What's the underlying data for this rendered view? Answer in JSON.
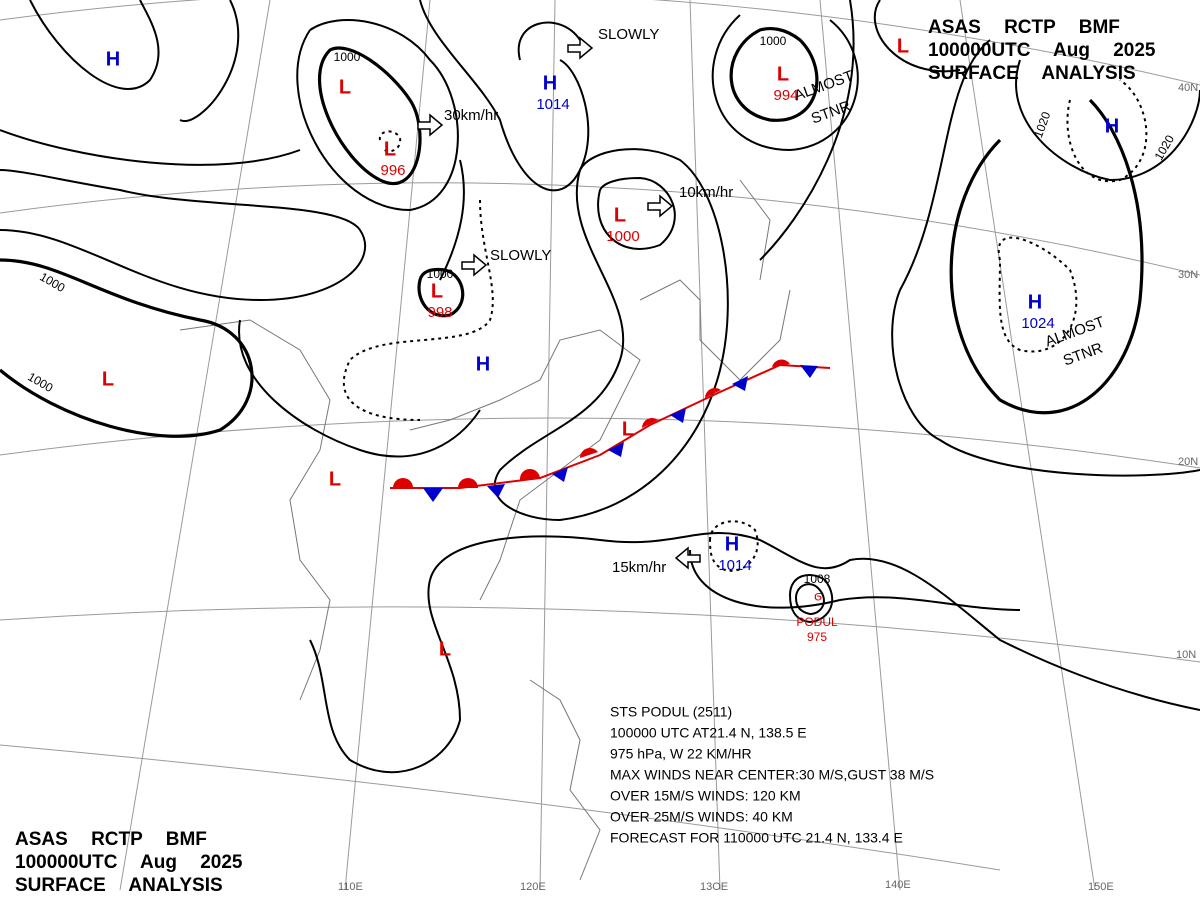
{
  "header_top": {
    "line1": "ASAS RCTP BMF",
    "line2": "100000UTC Aug 2025",
    "line3": "SURFACE ANALYSIS"
  },
  "header_bottom": {
    "line1": "ASAS RCTP BMF",
    "line2": "100000UTC Aug 2025",
    "line3": "SURFACE ANALYSIS"
  },
  "latitudes": [
    "40N",
    "30N",
    "20N",
    "10N"
  ],
  "longitudes": [
    "110E",
    "120E",
    "13OE",
    "140E",
    "150E"
  ],
  "centers": [
    {
      "symbol": "H"
    },
    {
      "symbol": "L"
    },
    {
      "symbol": "H",
      "pressure": "1014"
    },
    {
      "symbol": "L",
      "pressure": "996"
    },
    {
      "symbol": "L",
      "pressure": "1000"
    },
    {
      "symbol": "L",
      "pressure": "998"
    },
    {
      "symbol": "L",
      "pressure": "994"
    },
    {
      "symbol": "L"
    },
    {
      "symbol": "H"
    },
    {
      "symbol": "H",
      "pressure": "1024"
    },
    {
      "symbol": "L"
    },
    {
      "symbol": "H"
    },
    {
      "symbol": "L"
    },
    {
      "symbol": "L"
    },
    {
      "symbol": "H",
      "pressure": "1014"
    },
    {
      "symbol": "L"
    }
  ],
  "typhoon": {
    "name": "PODUL",
    "pressure": "975"
  },
  "isobar_labels": [
    "1000",
    "1000",
    "1000",
    "1000",
    "1000",
    "1008",
    "1020",
    "1020"
  ],
  "annotations": [
    "SLOWLY",
    "30km/hr",
    "10km/hr",
    "SLOWLY",
    "15km/hr",
    "ALMOST",
    "STNR",
    "ALMOST",
    "STNR"
  ],
  "storm_info": [
    "STS  PODUL  (2511)",
    "100000 UTC  AT21.4 N, 138.5 E",
    "975 hPa, W  22 KM/HR",
    "MAX WINDS NEAR CENTER:30 M/S,GUST 38 M/S",
    "OVER 15M/S WINDS: 120 KM",
    "OVER 25M/S WINDS: 40 KM",
    "FORECAST FOR 110000 UTC 21.4 N, 133.4 E"
  ]
}
